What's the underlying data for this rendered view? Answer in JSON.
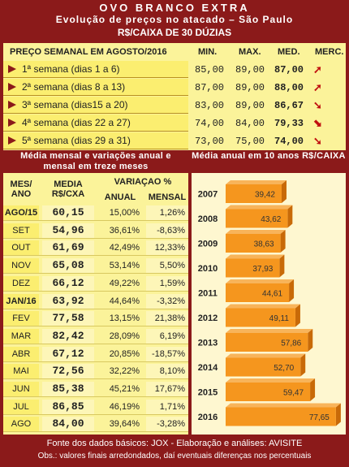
{
  "header": {
    "title": "OVO BRANCO EXTRA",
    "subtitle": "Evolução de preços no atacado – São Paulo",
    "unit": "R$/CAIXA DE 30 DÚZIAS"
  },
  "weekly": {
    "heading": "PREÇO SEMANAL EM AGOSTO/2016",
    "col_min": "MIN.",
    "col_max": "MAX.",
    "col_med": "MED.",
    "col_merc": "MERC.",
    "rows": [
      {
        "label": "1ª semana (dias 1 a 6)",
        "min": "85,00",
        "max": "89,00",
        "med": "87,00",
        "trend": "up"
      },
      {
        "label": "2ª semana (dias 8 a 13)",
        "min": "87,00",
        "max": "89,00",
        "med": "88,00",
        "trend": "up"
      },
      {
        "label": "3ª semana (dias15 a 20)",
        "min": "83,00",
        "max": "89,00",
        "med": "86,67",
        "trend": "down"
      },
      {
        "label": "4ª semana (dias 22 a 27)",
        "min": "74,00",
        "max": "84,00",
        "med": "79,33",
        "trend": "down-strong"
      },
      {
        "label": "5ª semana (dias 29 a 31)",
        "min": "73,00",
        "max": "75,00",
        "med": "74,00",
        "trend": "down"
      }
    ]
  },
  "monthly": {
    "title": "Média mensal e variações anual e mensal em treze meses",
    "col_mes": "MES/ ANO",
    "col_media": "MEDIA R$/CXA",
    "col_variacao": "VARIAÇAO %",
    "col_anual": "ANUAL",
    "col_mensal": "MENSAL",
    "rows": [
      {
        "mes": "AGO/15",
        "media": "60,15",
        "anual": "15,00%",
        "mensal": "1,26%",
        "bold": true
      },
      {
        "mes": "SET",
        "media": "54,96",
        "anual": "36,61%",
        "mensal": "-8,63%",
        "bold": false
      },
      {
        "mes": "OUT",
        "media": "61,69",
        "anual": "42,49%",
        "mensal": "12,33%",
        "bold": false
      },
      {
        "mes": "NOV",
        "media": "65,08",
        "anual": "53,14%",
        "mensal": "5,50%",
        "bold": false
      },
      {
        "mes": "DEZ",
        "media": "66,12",
        "anual": "49,22%",
        "mensal": "1,59%",
        "bold": false
      },
      {
        "mes": "JAN/16",
        "media": "63,92",
        "anual": "44,64%",
        "mensal": "-3,32%",
        "bold": true
      },
      {
        "mes": "FEV",
        "media": "77,58",
        "anual": "13,15%",
        "mensal": "21,38%",
        "bold": false
      },
      {
        "mes": "MAR",
        "media": "82,42",
        "anual": "28,09%",
        "mensal": "6,19%",
        "bold": false
      },
      {
        "mes": "ABR",
        "media": "67,12",
        "anual": "20,85%",
        "mensal": "-18,57%",
        "bold": false
      },
      {
        "mes": "MAI",
        "media": "72,56",
        "anual": "32,22%",
        "mensal": "8,10%",
        "bold": false
      },
      {
        "mes": "JUN",
        "media": "85,38",
        "anual": "45,21%",
        "mensal": "17,67%",
        "bold": false
      },
      {
        "mes": "JUL",
        "media": "86,85",
        "anual": "46,19%",
        "mensal": "1,71%",
        "bold": false
      },
      {
        "mes": "AGO",
        "media": "84,00",
        "anual": "39,64%",
        "mensal": "-3,28%",
        "bold": false
      }
    ]
  },
  "chart_data": {
    "type": "bar",
    "orientation": "horizontal",
    "title": "Média anual em 10 anos R$/CAIXA",
    "categories": [
      "2007",
      "2008",
      "2009",
      "2010",
      "2011",
      "2012",
      "2013",
      "2014",
      "2015",
      "2016"
    ],
    "values": [
      39.42,
      43.62,
      38.63,
      37.93,
      44.61,
      49.11,
      57.86,
      52.7,
      59.47,
      77.65
    ],
    "value_labels": [
      "39,42",
      "43,62",
      "38,63",
      "37,93",
      "44,61",
      "49,11",
      "57,86",
      "52,70",
      "59,47",
      "77,65"
    ],
    "xlim": [
      0,
      80
    ],
    "grid": false,
    "bar_color": "#f5961e"
  },
  "footer": {
    "source": "Fonte dos dados básicos: JOX - Elaboração e análises: AVISITE",
    "note": "Obs.: valores finais arredondados, daí eventuais diferenças nos percentuais"
  },
  "colors": {
    "frame": "#8b1a1a",
    "panel": "#fbf39a",
    "bar": "#f5961e",
    "trend_arrow": "#c01010"
  }
}
